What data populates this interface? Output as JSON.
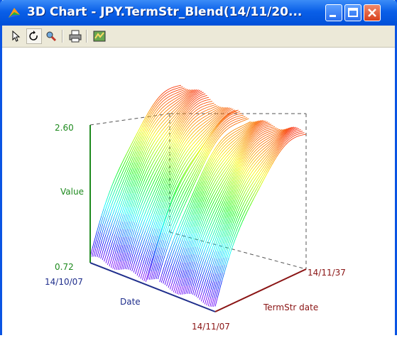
{
  "window": {
    "title": "3D Chart - JPY.TermStr_Blend(14/11/20..."
  },
  "toolbar": {
    "tools": [
      "select-arrow-icon",
      "rotate-icon",
      "zoom-icon",
      "print-icon",
      "settings-icon"
    ]
  },
  "chart": {
    "value_axis": {
      "label": "Value",
      "max": "2.60",
      "min": "0.72"
    },
    "date_axis": {
      "label": "Date",
      "start": "14/10/07"
    },
    "term_axis": {
      "label": "TermStr date",
      "start": "14/11/07",
      "end": "14/11/37"
    }
  },
  "colors": {
    "titlebar": "#0a5fe8",
    "value_axis": "#1e8a1e",
    "date_axis": "#1f2e8c",
    "term_axis": "#8a1414"
  }
}
